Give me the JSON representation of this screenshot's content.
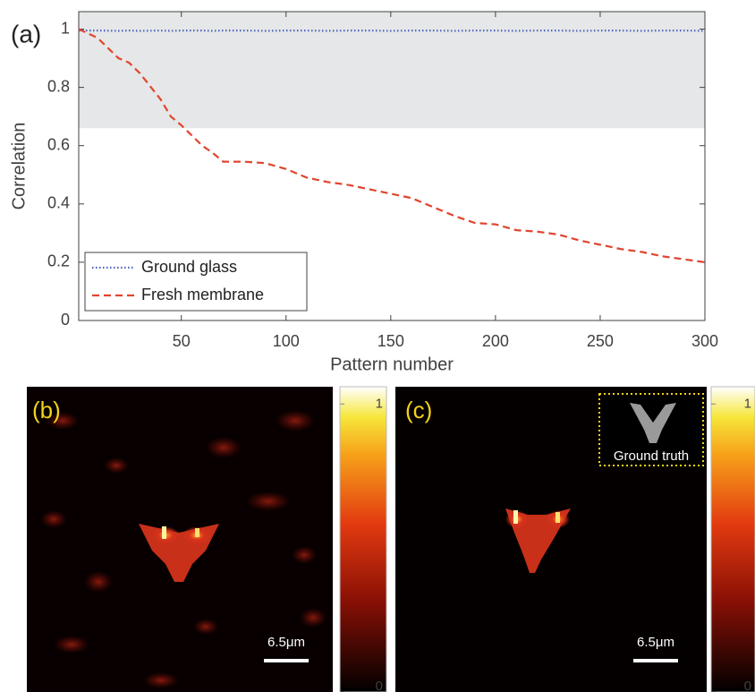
{
  "chart_data": {
    "type": "line",
    "panel_label": "(a)",
    "xlabel": "Pattern number",
    "ylabel": "Correlation",
    "x": [
      1,
      10,
      20,
      25,
      30,
      40,
      45,
      50,
      60,
      65,
      70,
      80,
      90,
      100,
      110,
      120,
      130,
      140,
      150,
      160,
      170,
      180,
      190,
      200,
      210,
      220,
      230,
      240,
      250,
      260,
      270,
      280,
      290,
      300
    ],
    "xlim": [
      1,
      300
    ],
    "xticks": [
      50,
      100,
      150,
      200,
      250,
      300
    ],
    "ylim": [
      0,
      1.06
    ],
    "yticks": [
      0,
      0.2,
      0.4,
      0.6,
      0.8,
      1
    ],
    "shaded_band": {
      "ylim": [
        0.66,
        1.06
      ],
      "color": "#e6e7e8"
    },
    "legend": "lower left",
    "series": [
      {
        "name": "Ground glass",
        "color": "#4a63c0",
        "linestyle": "dotted",
        "values": [
          0.995,
          0.995,
          0.994,
          0.995,
          0.994,
          0.995,
          0.994,
          0.995,
          0.995,
          0.994,
          0.995,
          0.995,
          0.994,
          0.995,
          0.995,
          0.994,
          0.995,
          0.995,
          0.994,
          0.995,
          0.995,
          0.994,
          0.995,
          0.995,
          0.994,
          0.995,
          0.995,
          0.994,
          0.995,
          0.995,
          0.994,
          0.995,
          0.995,
          0.994
        ]
      },
      {
        "name": "Fresh membrane",
        "color": "#e0452e",
        "linestyle": "dashed",
        "values": [
          1.0,
          0.97,
          0.9,
          0.885,
          0.85,
          0.76,
          0.7,
          0.67,
          0.6,
          0.575,
          0.545,
          0.545,
          0.54,
          0.52,
          0.49,
          0.475,
          0.465,
          0.45,
          0.435,
          0.42,
          0.39,
          0.36,
          0.335,
          0.33,
          0.31,
          0.305,
          0.295,
          0.275,
          0.26,
          0.245,
          0.235,
          0.22,
          0.21,
          0.2
        ]
      }
    ]
  },
  "panels": [
    {
      "label": "(b)",
      "scalebar": "6.5μm",
      "colorbar": {
        "lim": [
          0,
          1.06
        ],
        "ticks": [
          0,
          1
        ]
      }
    },
    {
      "label": "(c)",
      "inset_label": "Ground truth",
      "scalebar": "6.5μm",
      "colorbar": {
        "lim": [
          0,
          1.06
        ],
        "ticks": [
          0,
          1
        ]
      }
    }
  ]
}
